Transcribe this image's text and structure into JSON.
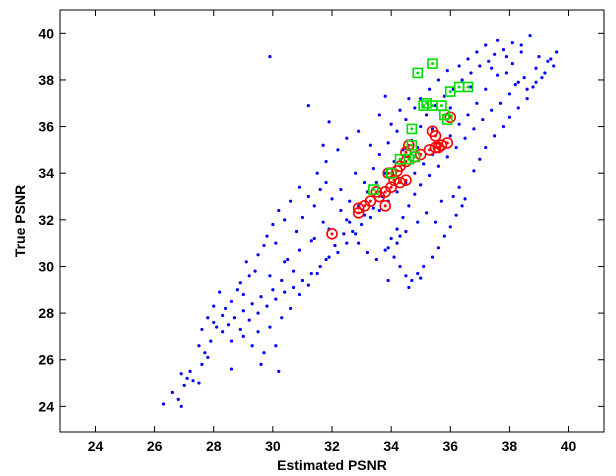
{
  "chart_data": {
    "type": "scatter",
    "xlabel": "Estimated PSNR",
    "ylabel": "True PSNR",
    "xlim": [
      22.8,
      41.2
    ],
    "ylim": [
      22.9,
      41.0
    ],
    "xticks": [
      24,
      26,
      28,
      30,
      32,
      34,
      36,
      38,
      40
    ],
    "yticks": [
      24,
      26,
      28,
      30,
      32,
      34,
      36,
      38,
      40
    ],
    "grid": false,
    "colors": {
      "dots": "#0000ff",
      "circles": "#ff0000",
      "squares": "#00dd00"
    },
    "series": [
      {
        "marker": "dot",
        "color": "#0000ff",
        "points": [
          [
            26.3,
            24.1
          ],
          [
            26.6,
            24.6
          ],
          [
            26.8,
            24.3
          ],
          [
            26.9,
            24.0
          ],
          [
            27.0,
            24.9
          ],
          [
            27.1,
            25.2
          ],
          [
            27.2,
            25.5
          ],
          [
            27.3,
            25.1
          ],
          [
            27.5,
            25.0
          ],
          [
            26.9,
            25.4
          ],
          [
            27.6,
            25.8
          ],
          [
            27.7,
            26.3
          ],
          [
            27.5,
            26.6
          ],
          [
            27.8,
            26.1
          ],
          [
            27.9,
            26.8
          ],
          [
            27.6,
            27.3
          ],
          [
            27.8,
            27.8
          ],
          [
            28.0,
            27.6
          ],
          [
            28.1,
            27.4
          ],
          [
            28.3,
            27.9
          ],
          [
            28.0,
            28.3
          ],
          [
            28.4,
            28.2
          ],
          [
            28.6,
            28.5
          ],
          [
            28.2,
            28.9
          ],
          [
            28.8,
            29.0
          ],
          [
            28.9,
            29.3
          ],
          [
            29.0,
            28.8
          ],
          [
            29.2,
            29.6
          ],
          [
            29.4,
            29.8
          ],
          [
            29.1,
            30.2
          ],
          [
            29.5,
            30.5
          ],
          [
            29.7,
            30.9
          ],
          [
            29.8,
            31.3
          ],
          [
            30.0,
            31.8
          ],
          [
            30.2,
            32.4
          ],
          [
            30.1,
            31.0
          ],
          [
            30.4,
            32.0
          ],
          [
            30.6,
            32.8
          ],
          [
            30.5,
            30.3
          ],
          [
            30.8,
            31.5
          ],
          [
            31.0,
            32.1
          ],
          [
            31.2,
            33.0
          ],
          [
            30.9,
            33.4
          ],
          [
            31.4,
            32.6
          ],
          [
            31.6,
            33.3
          ],
          [
            31.7,
            31.9
          ],
          [
            31.3,
            31.1
          ],
          [
            30.7,
            29.8
          ],
          [
            30.3,
            29.4
          ],
          [
            30.0,
            29.0
          ],
          [
            29.6,
            28.7
          ],
          [
            29.3,
            28.4
          ],
          [
            29.0,
            28.1
          ],
          [
            28.7,
            27.8
          ],
          [
            28.5,
            27.5
          ],
          [
            28.3,
            27.2
          ],
          [
            28.6,
            26.8
          ],
          [
            29.0,
            27.0
          ],
          [
            29.5,
            27.2
          ],
          [
            29.9,
            27.4
          ],
          [
            30.3,
            27.8
          ],
          [
            30.6,
            28.2
          ],
          [
            30.9,
            28.8
          ],
          [
            31.2,
            29.2
          ],
          [
            31.5,
            29.7
          ],
          [
            31.8,
            30.3
          ],
          [
            32.1,
            30.9
          ],
          [
            32.4,
            31.4
          ],
          [
            32.6,
            31.9
          ],
          [
            32.9,
            32.6
          ],
          [
            33.2,
            33.2
          ],
          [
            33.5,
            33.6
          ],
          [
            33.8,
            34.0
          ],
          [
            34.1,
            34.5
          ],
          [
            34.4,
            35.0
          ],
          [
            34.7,
            35.4
          ],
          [
            35.0,
            36.0
          ],
          [
            35.2,
            36.5
          ],
          [
            35.5,
            36.9
          ],
          [
            35.8,
            37.3
          ],
          [
            36.1,
            37.6
          ],
          [
            36.4,
            38.0
          ],
          [
            36.7,
            38.3
          ],
          [
            37.0,
            38.6
          ],
          [
            37.3,
            38.8
          ],
          [
            37.5,
            39.1
          ],
          [
            37.8,
            39.3
          ],
          [
            38.1,
            39.6
          ],
          [
            38.4,
            39.5
          ],
          [
            38.7,
            39.9
          ],
          [
            39.0,
            39.0
          ],
          [
            39.3,
            38.8
          ],
          [
            39.6,
            39.2
          ],
          [
            38.9,
            38.5
          ],
          [
            38.5,
            38.1
          ],
          [
            38.2,
            37.8
          ],
          [
            38.0,
            37.4
          ],
          [
            37.7,
            37.0
          ],
          [
            37.4,
            36.7
          ],
          [
            37.1,
            36.3
          ],
          [
            36.8,
            35.9
          ],
          [
            36.5,
            35.5
          ],
          [
            36.2,
            35.1
          ],
          [
            35.9,
            34.7
          ],
          [
            35.6,
            34.3
          ],
          [
            35.3,
            33.9
          ],
          [
            35.0,
            33.5
          ],
          [
            34.8,
            33.1
          ],
          [
            34.6,
            32.6
          ],
          [
            34.4,
            32.1
          ],
          [
            34.2,
            31.6
          ],
          [
            34.0,
            31.2
          ],
          [
            33.9,
            30.8
          ],
          [
            34.1,
            30.4
          ],
          [
            34.3,
            30.0
          ],
          [
            34.5,
            29.6
          ],
          [
            34.7,
            29.4
          ],
          [
            34.9,
            29.7
          ],
          [
            35.1,
            30.0
          ],
          [
            35.4,
            30.4
          ],
          [
            35.6,
            30.8
          ],
          [
            35.8,
            31.3
          ],
          [
            36.0,
            31.7
          ],
          [
            36.2,
            32.2
          ],
          [
            36.4,
            32.6
          ],
          [
            36.1,
            33.0
          ],
          [
            35.7,
            32.8
          ],
          [
            35.2,
            32.3
          ],
          [
            34.9,
            31.9
          ],
          [
            34.5,
            31.5
          ],
          [
            34.2,
            31.0
          ],
          [
            33.8,
            30.7
          ],
          [
            33.5,
            30.3
          ],
          [
            33.2,
            30.6
          ],
          [
            32.9,
            31.0
          ],
          [
            32.7,
            31.5
          ],
          [
            32.5,
            32.0
          ],
          [
            32.3,
            32.4
          ],
          [
            32.0,
            32.9
          ],
          [
            31.8,
            33.6
          ],
          [
            31.5,
            34.0
          ],
          [
            31.8,
            34.5
          ],
          [
            32.2,
            35.0
          ],
          [
            32.5,
            35.5
          ],
          [
            32.9,
            35.8
          ],
          [
            33.3,
            35.2
          ],
          [
            33.6,
            34.8
          ],
          [
            33.9,
            35.3
          ],
          [
            34.2,
            35.8
          ],
          [
            34.5,
            36.3
          ],
          [
            34.8,
            36.8
          ],
          [
            35.0,
            37.2
          ],
          [
            35.3,
            37.6
          ],
          [
            35.6,
            38.0
          ],
          [
            35.9,
            38.4
          ],
          [
            36.3,
            38.6
          ],
          [
            36.6,
            38.9
          ],
          [
            36.9,
            39.2
          ],
          [
            37.2,
            39.5
          ],
          [
            37.6,
            39.7
          ],
          [
            37.9,
            38.3
          ],
          [
            38.3,
            37.9
          ],
          [
            38.6,
            37.6
          ],
          [
            38.9,
            37.9
          ],
          [
            39.2,
            38.3
          ],
          [
            39.4,
            38.9
          ],
          [
            38.1,
            38.7
          ],
          [
            37.6,
            38.2
          ],
          [
            37.2,
            37.6
          ],
          [
            36.9,
            37.0
          ],
          [
            36.6,
            36.5
          ],
          [
            36.3,
            36.1
          ],
          [
            36.0,
            35.6
          ],
          [
            35.7,
            35.2
          ],
          [
            35.4,
            34.8
          ],
          [
            35.1,
            34.4
          ],
          [
            34.8,
            34.0
          ],
          [
            34.5,
            33.6
          ],
          [
            34.2,
            33.2
          ],
          [
            33.9,
            32.8
          ],
          [
            33.6,
            32.4
          ],
          [
            33.3,
            32.1
          ],
          [
            33.0,
            31.8
          ],
          [
            32.8,
            31.4
          ],
          [
            32.5,
            31.0
          ],
          [
            32.2,
            30.6
          ],
          [
            31.9,
            30.4
          ],
          [
            31.6,
            30.0
          ],
          [
            31.3,
            29.7
          ],
          [
            31.0,
            29.4
          ],
          [
            30.7,
            29.1
          ],
          [
            30.4,
            28.9
          ],
          [
            30.1,
            28.6
          ],
          [
            29.8,
            28.3
          ],
          [
            29.5,
            28.0
          ],
          [
            29.2,
            27.7
          ],
          [
            28.9,
            27.3
          ],
          [
            29.3,
            26.6
          ],
          [
            29.7,
            26.3
          ],
          [
            30.1,
            26.6
          ],
          [
            29.9,
            39.0
          ],
          [
            31.2,
            36.9
          ],
          [
            31.7,
            35.2
          ],
          [
            31.9,
            36.2
          ],
          [
            32.8,
            34.0
          ],
          [
            33.1,
            33.6
          ],
          [
            33.4,
            34.2
          ],
          [
            30.2,
            25.5
          ],
          [
            29.6,
            25.8
          ],
          [
            28.6,
            25.6
          ],
          [
            34.0,
            36.1
          ],
          [
            34.3,
            36.7
          ],
          [
            34.6,
            37.2
          ],
          [
            33.8,
            37.3
          ],
          [
            33.6,
            36.5
          ],
          [
            33.9,
            29.4
          ],
          [
            34.6,
            29.1
          ],
          [
            35.0,
            29.5
          ],
          [
            34.3,
            31.3
          ],
          [
            35.5,
            31.9
          ],
          [
            36.3,
            33.4
          ],
          [
            36.5,
            32.9
          ],
          [
            36.8,
            34.1
          ],
          [
            37.0,
            34.6
          ],
          [
            37.2,
            35.1
          ],
          [
            37.5,
            35.6
          ],
          [
            37.8,
            36.0
          ],
          [
            38.0,
            36.4
          ],
          [
            38.3,
            36.8
          ],
          [
            38.6,
            37.2
          ],
          [
            38.8,
            37.7
          ],
          [
            39.1,
            38.1
          ],
          [
            39.5,
            38.6
          ],
          [
            38.4,
            39.2
          ],
          [
            37.9,
            39.0
          ],
          [
            37.4,
            38.5
          ],
          [
            36.7,
            37.7
          ],
          [
            36.0,
            36.8
          ],
          [
            35.4,
            35.9
          ],
          [
            34.9,
            35.1
          ],
          [
            33.7,
            33.0
          ],
          [
            33.4,
            32.5
          ],
          [
            33.1,
            32.2
          ],
          [
            32.6,
            32.8
          ],
          [
            32.3,
            33.3
          ],
          [
            31.9,
            31.6
          ],
          [
            31.4,
            31.2
          ],
          [
            30.9,
            30.7
          ],
          [
            30.4,
            30.2
          ],
          [
            29.9,
            29.6
          ]
        ]
      },
      {
        "marker": "circle",
        "color": "#ff0000",
        "points": [
          [
            32.0,
            31.4
          ],
          [
            32.9,
            32.3
          ],
          [
            32.9,
            32.5
          ],
          [
            33.1,
            32.6
          ],
          [
            33.3,
            32.8
          ],
          [
            33.6,
            33.0
          ],
          [
            33.8,
            32.6
          ],
          [
            33.8,
            33.2
          ],
          [
            34.0,
            33.4
          ],
          [
            34.1,
            33.7
          ],
          [
            34.3,
            33.6
          ],
          [
            34.5,
            33.7
          ],
          [
            33.9,
            34.0
          ],
          [
            34.3,
            34.3
          ],
          [
            34.5,
            34.5
          ],
          [
            34.8,
            34.7
          ],
          [
            35.0,
            34.8
          ],
          [
            35.3,
            35.0
          ],
          [
            35.5,
            35.1
          ],
          [
            35.7,
            35.2
          ],
          [
            35.9,
            35.3
          ],
          [
            35.6,
            35.1
          ],
          [
            35.4,
            35.8
          ],
          [
            35.5,
            35.6
          ],
          [
            34.6,
            35.2
          ],
          [
            34.5,
            34.9
          ],
          [
            36.0,
            36.4
          ],
          [
            33.5,
            33.2
          ],
          [
            34.2,
            34.1
          ],
          [
            34.0,
            34.0
          ]
        ]
      },
      {
        "marker": "square",
        "color": "#00dd00",
        "points": [
          [
            33.4,
            33.3
          ],
          [
            34.0,
            34.0
          ],
          [
            34.3,
            34.6
          ],
          [
            34.6,
            34.6
          ],
          [
            34.7,
            35.2
          ],
          [
            34.7,
            35.9
          ],
          [
            34.8,
            34.7
          ],
          [
            35.1,
            36.9
          ],
          [
            35.4,
            36.9
          ],
          [
            35.8,
            36.5
          ],
          [
            35.9,
            36.3
          ],
          [
            35.2,
            37.0
          ],
          [
            36.0,
            37.5
          ],
          [
            36.3,
            37.7
          ],
          [
            36.6,
            37.7
          ],
          [
            34.9,
            38.3
          ],
          [
            35.4,
            38.7
          ],
          [
            35.7,
            36.9
          ]
        ]
      }
    ]
  }
}
